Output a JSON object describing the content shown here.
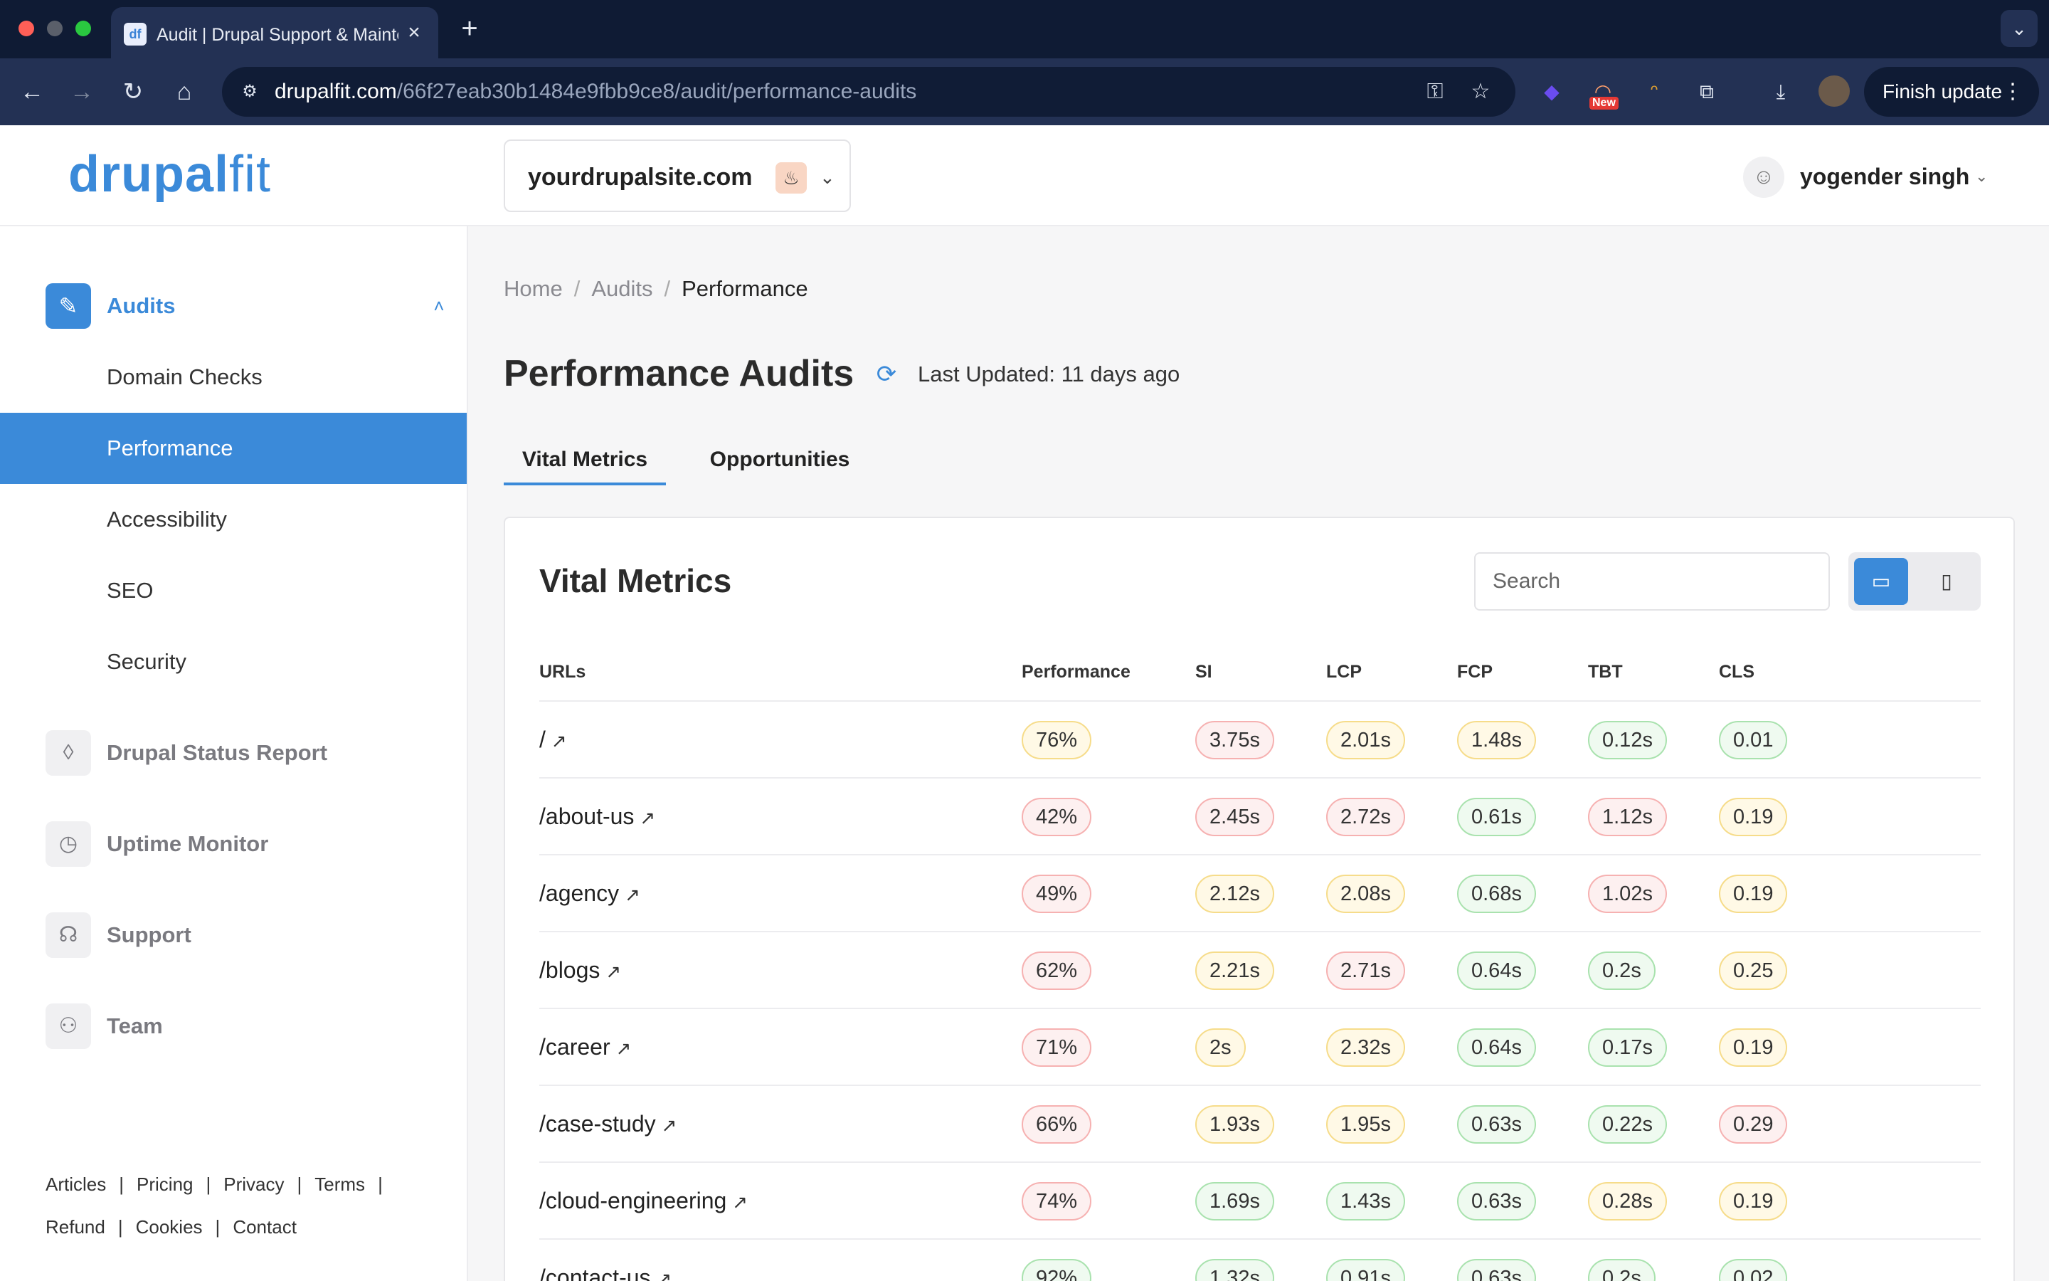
{
  "browser": {
    "tab_title": "Audit | Drupal Support & Maintenance",
    "tab_favicon": "df",
    "url_host": "drupalfit.com",
    "url_path": "/66f27eab30b1484e9fbb9ce8/audit/performance-audits",
    "ext_badge": "New",
    "finish_update": "Finish update"
  },
  "header": {
    "logo_bold": "drupal",
    "logo_light": "fit",
    "site": "yourdrupalsite.com",
    "user": "yogender singh"
  },
  "sidebar": {
    "section": "Audits",
    "sub_items": [
      "Domain Checks",
      "Performance",
      "Accessibility",
      "SEO",
      "Security"
    ],
    "groups": [
      "Drupal Status Report",
      "Uptime Monitor",
      "Support",
      "Team"
    ],
    "footer_row1": [
      "Articles",
      "Pricing",
      "Privacy",
      "Terms"
    ],
    "footer_row2": [
      "Refund",
      "Cookies",
      "Contact"
    ]
  },
  "main": {
    "breadcrumb": [
      "Home",
      "Audits",
      "Performance"
    ],
    "title": "Performance Audits",
    "last_updated": "Last Updated: 11 days ago",
    "tabs": [
      "Vital Metrics",
      "Opportunities"
    ],
    "card_title": "Vital Metrics",
    "search_placeholder": "Search"
  },
  "table": {
    "columns": [
      "URLs",
      "Performance",
      "SI",
      "LCP",
      "FCP",
      "TBT",
      "CLS"
    ],
    "rows": [
      {
        "url": "/",
        "perf": "76%",
        "si": "3.75s",
        "lcp": "2.01s",
        "fcp": "1.48s",
        "tbt": "0.12s",
        "cls": "0.01"
      },
      {
        "url": "/about-us",
        "perf": "42%",
        "si": "2.45s",
        "lcp": "2.72s",
        "fcp": "0.61s",
        "tbt": "1.12s",
        "cls": "0.19"
      },
      {
        "url": "/agency",
        "perf": "49%",
        "si": "2.12s",
        "lcp": "2.08s",
        "fcp": "0.68s",
        "tbt": "1.02s",
        "cls": "0.19"
      },
      {
        "url": "/blogs",
        "perf": "62%",
        "si": "2.21s",
        "lcp": "2.71s",
        "fcp": "0.64s",
        "tbt": "0.2s",
        "cls": "0.25"
      },
      {
        "url": "/career",
        "perf": "71%",
        "si": "2s",
        "lcp": "2.32s",
        "fcp": "0.64s",
        "tbt": "0.17s",
        "cls": "0.19"
      },
      {
        "url": "/case-study",
        "perf": "66%",
        "si": "1.93s",
        "lcp": "1.95s",
        "fcp": "0.63s",
        "tbt": "0.22s",
        "cls": "0.29"
      },
      {
        "url": "/cloud-engineering",
        "perf": "74%",
        "si": "1.69s",
        "lcp": "1.43s",
        "fcp": "0.63s",
        "tbt": "0.28s",
        "cls": "0.19"
      },
      {
        "url": "/contact-us",
        "perf": "92%",
        "si": "1.32s",
        "lcp": "0.91s",
        "fcp": "0.63s",
        "tbt": "0.2s",
        "cls": "0.02"
      }
    ]
  }
}
